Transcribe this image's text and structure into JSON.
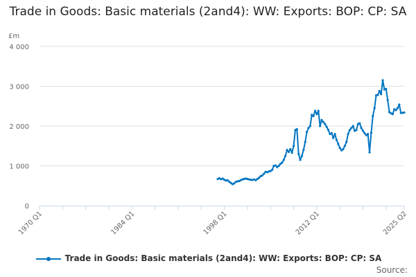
{
  "chart_data": {
    "type": "line",
    "title": "Trade in Goods: Basic materials (2and4): WW: Exports: BOP: CP: SA",
    "ylabel": "£m",
    "xlabel": "",
    "ylim": [
      0,
      4000
    ],
    "yticks": [
      0,
      1000,
      2000,
      3000,
      4000
    ],
    "ytick_labels": [
      "0",
      "1 000",
      "2 000",
      "3 000",
      "4 000"
    ],
    "xrange": [
      "1970 Q1",
      "2025 Q2"
    ],
    "xtick_labels": [
      "1970 Q1",
      "1984 Q1",
      "1998 Q1",
      "2012 Q1",
      "2025 Q2"
    ],
    "grid": "horizontal",
    "legend": "bottom",
    "series": [
      {
        "name": "Trade in Goods: Basic materials (2and4): WW: Exports: BOP: CP: SA",
        "color": "#0075c2",
        "start": "1997 Q1",
        "frequency": "quarterly",
        "values": [
          670,
          690,
          665,
          680,
          650,
          630,
          640,
          600,
          570,
          540,
          560,
          600,
          610,
          620,
          640,
          660,
          670,
          680,
          670,
          660,
          650,
          645,
          660,
          640,
          670,
          700,
          740,
          760,
          800,
          850,
          840,
          860,
          870,
          900,
          1000,
          1010,
          970,
          1000,
          1050,
          1080,
          1150,
          1250,
          1400,
          1350,
          1420,
          1330,
          1500,
          1900,
          1920,
          1300,
          1150,
          1250,
          1400,
          1600,
          1850,
          1950,
          2000,
          2280,
          2250,
          2380,
          2300,
          2380,
          2000,
          2150,
          2100,
          2050,
          1980,
          1900,
          1800,
          1820,
          1700,
          1800,
          1650,
          1550,
          1450,
          1390,
          1420,
          1500,
          1600,
          1800,
          1900,
          1950,
          2000,
          1880,
          1900,
          2050,
          2070,
          1950,
          1880,
          1820,
          1770,
          1800,
          1340,
          1830,
          2250,
          2450,
          2770,
          2780,
          2880,
          2800,
          3150,
          2920,
          2930,
          2650,
          2350,
          2320,
          2300,
          2420,
          2400,
          2450,
          2540,
          2330,
          2330,
          2340
        ]
      }
    ]
  },
  "legend_label": "Trade in Goods: Basic materials (2and4): WW: Exports: BOP: CP: SA",
  "source_label": "Source:"
}
